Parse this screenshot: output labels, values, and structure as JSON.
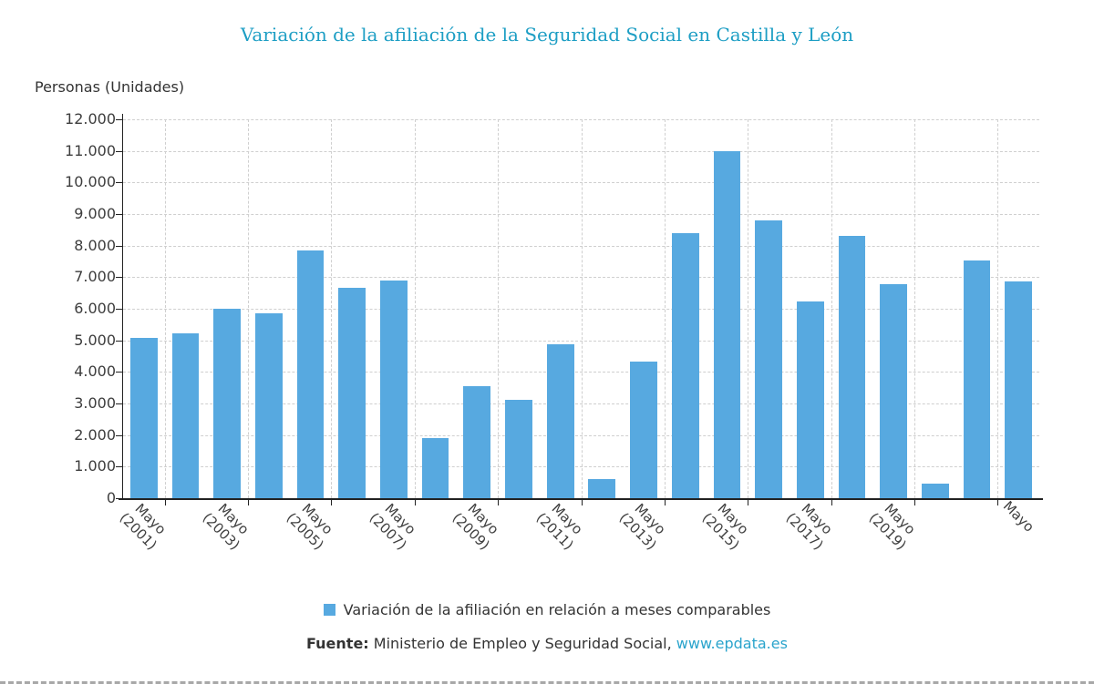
{
  "page": {
    "bottom_border_color": "#a8a8a8"
  },
  "chart_data": {
    "type": "bar",
    "title": "Variación de la afiliación de la Seguridad Social en Castilla y León",
    "y_unit_label": "Personas (Unidades)",
    "ylim": [
      0,
      12000
    ],
    "y_tick_labels": [
      "12.000",
      "11.000",
      "10.000",
      "9.000",
      "8.000",
      "7.000",
      "6.000",
      "5.000",
      "4.000",
      "3.000",
      "2.000",
      "1.000",
      "0"
    ],
    "values": [
      5070,
      5230,
      6000,
      5870,
      7860,
      6670,
      6900,
      1900,
      3560,
      3120,
      4870,
      620,
      4320,
      8390,
      10980,
      8800,
      6220,
      8320,
      6770,
      450,
      7540,
      6860
    ],
    "x_tick_labels": [
      {
        "index": 0,
        "line1": "Mayo",
        "line2": "(2001)"
      },
      {
        "index": 2,
        "line1": "Mayo",
        "line2": "(2003)"
      },
      {
        "index": 4,
        "line1": "Mayo",
        "line2": "(2005)"
      },
      {
        "index": 6,
        "line1": "Mayo",
        "line2": "(2007)"
      },
      {
        "index": 8,
        "line1": "Mayo",
        "line2": "(2009)"
      },
      {
        "index": 10,
        "line1": "Mayo",
        "line2": "(2011)"
      },
      {
        "index": 12,
        "line1": "Mayo",
        "line2": "(2013)"
      },
      {
        "index": 14,
        "line1": "Mayo",
        "line2": "(2015)"
      },
      {
        "index": 16,
        "line1": "Mayo",
        "line2": "(2017)"
      },
      {
        "index": 18,
        "line1": "Mayo",
        "line2": "(2019)"
      },
      {
        "index": 21,
        "line1": "Mayo",
        "line2": ""
      }
    ],
    "v_grid_boundaries": [
      1,
      3,
      5,
      7,
      9,
      11,
      13,
      15,
      17,
      19,
      21
    ],
    "bar_color": "#57a9e0",
    "grid_color": "#cfcfcf",
    "axis_color": "#222222",
    "title_color": "#1d9ec4",
    "legend_label": "Variación de la afiliación en relación a meses comparables",
    "footer": {
      "label": "Fuente:",
      "text": " Ministerio de Empleo y Seguridad Social, ",
      "link": "www.epdata.es",
      "link_color": "#2aa4cc"
    }
  }
}
